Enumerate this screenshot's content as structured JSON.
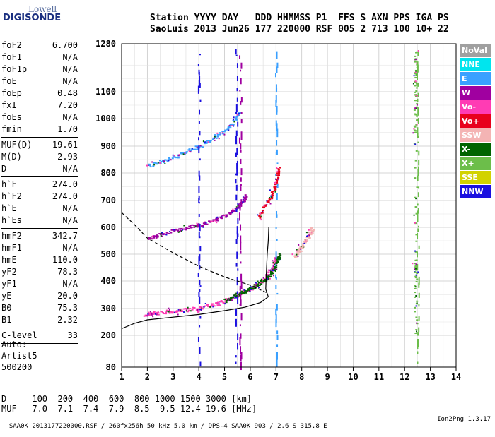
{
  "logo": {
    "line1": "Lowell",
    "line2": "DIGISONDE"
  },
  "header": {
    "row1": "Station YYYY DAY   DDD HHMMSS P1  FFS S AXN PPS IGA PS",
    "row2": "SaoLuis 2013 Jun26 177 220000 RSF 005 2 713 100 10+ 22"
  },
  "params_group1": [
    {
      "k": "foF2",
      "v": "6.700"
    },
    {
      "k": "foF1",
      "v": "N/A"
    },
    {
      "k": "foF1p",
      "v": "N/A"
    },
    {
      "k": "foE",
      "v": "N/A"
    },
    {
      "k": "foEp",
      "v": "0.48"
    },
    {
      "k": "fxI",
      "v": "7.20"
    },
    {
      "k": "foEs",
      "v": "N/A"
    },
    {
      "k": "fmin",
      "v": "1.70"
    }
  ],
  "params_group2": [
    {
      "k": "MUF(D)",
      "v": "19.61"
    },
    {
      "k": "M(D)",
      "v": "2.93"
    },
    {
      "k": "D",
      "v": "N/A"
    }
  ],
  "params_group3": [
    {
      "k": "h`F",
      "v": "274.0"
    },
    {
      "k": "h`F2",
      "v": "274.0"
    },
    {
      "k": "h`E",
      "v": "N/A"
    },
    {
      "k": "h`Es",
      "v": "N/A"
    }
  ],
  "params_group4": [
    {
      "k": "hmF2",
      "v": "342.7"
    },
    {
      "k": "hmF1",
      "v": "N/A"
    },
    {
      "k": "hmE",
      "v": "110.0"
    },
    {
      "k": "yF2",
      "v": "78.3"
    },
    {
      "k": "yF1",
      "v": "N/A"
    },
    {
      "k": "yE",
      "v": "20.0"
    },
    {
      "k": "B0",
      "v": "75.3"
    },
    {
      "k": "B1",
      "v": "2.32"
    }
  ],
  "params_group5": [
    {
      "k": "C-level",
      "v": "33"
    }
  ],
  "auto": {
    "line1": "Auto:",
    "line2": "Artist5",
    "line3": "500200"
  },
  "legend": [
    {
      "label": "NoVal",
      "color": "#a0a0a0"
    },
    {
      "label": "NNE",
      "color": "#00e5ee"
    },
    {
      "label": "E",
      "color": "#3aa0ff"
    },
    {
      "label": "W",
      "color": "#a000a0"
    },
    {
      "label": "Vo-",
      "color": "#ff3cb4"
    },
    {
      "label": "Vo+",
      "color": "#e8001c"
    },
    {
      "label": "SSW",
      "color": "#f4b4b4"
    },
    {
      "label": "X-",
      "color": "#006400"
    },
    {
      "label": "X+",
      "color": "#6cbe4a"
    },
    {
      "label": "SSE",
      "color": "#d2d200"
    },
    {
      "label": "NNW",
      "color": "#1a10e0"
    }
  ],
  "footer": {
    "d_row": "D     100  200  400  600  800 1000 1500 3000 [km]",
    "muf_row": "MUF   7.0  7.1  7.4  7.9  8.5  9.5 12.4 19.6 [MHz]"
  },
  "bottom": {
    "text": "SAA0K_2013177220000.RSF / 260fx256h 50 kHz 5.0 km / DPS-4 SAA0K 903 / 2.6 S 315.8 E",
    "version": "Ion2Png 1.3.17"
  },
  "chart_data": {
    "type": "scatter",
    "xlim": [
      1,
      14
    ],
    "ylim": [
      80,
      1280
    ],
    "x_ticks": [
      "1",
      "2",
      "3",
      "4",
      "5",
      "6",
      "7",
      "8",
      "9",
      "10",
      "11",
      "12",
      "13",
      "14"
    ],
    "y_ticks": [
      "80",
      "200",
      "300",
      "400",
      "500",
      "600",
      "700",
      "800",
      "900",
      "1000",
      "1100",
      "1280"
    ],
    "grid": true,
    "series": [
      {
        "name": "Vo-",
        "color": "#ff3cb4",
        "points": [
          [
            1.9,
            280
          ],
          [
            2.3,
            285
          ],
          [
            2.8,
            290
          ],
          [
            3.3,
            295
          ],
          [
            3.8,
            300
          ],
          [
            4.3,
            310
          ],
          [
            4.8,
            322
          ],
          [
            5.2,
            338
          ],
          [
            5.6,
            355
          ],
          [
            6.0,
            375
          ],
          [
            6.4,
            400
          ],
          [
            6.7,
            430
          ],
          [
            6.9,
            460
          ],
          [
            7.0,
            490
          ]
        ]
      },
      {
        "name": "X-",
        "color": "#006400",
        "points": [
          [
            5.0,
            330
          ],
          [
            5.4,
            348
          ],
          [
            5.8,
            365
          ],
          [
            6.2,
            385
          ],
          [
            6.6,
            410
          ],
          [
            6.9,
            440
          ],
          [
            7.0,
            480
          ],
          [
            7.1,
            500
          ]
        ]
      },
      {
        "name": "W",
        "color": "#a000a0",
        "points": [
          [
            2.0,
            560
          ],
          [
            2.5,
            575
          ],
          [
            3.0,
            590
          ],
          [
            3.5,
            600
          ],
          [
            4.0,
            610
          ],
          [
            4.5,
            625
          ],
          [
            5.0,
            645
          ],
          [
            5.4,
            670
          ],
          [
            5.7,
            700
          ],
          [
            5.8,
            720
          ]
        ]
      },
      {
        "name": "Vo+",
        "color": "#e8001c",
        "points": [
          [
            6.3,
            640
          ],
          [
            6.6,
            690
          ],
          [
            6.9,
            740
          ],
          [
            7.0,
            780
          ],
          [
            7.1,
            820
          ]
        ]
      },
      {
        "name": "E",
        "color": "#3aa0ff",
        "points": [
          [
            2.0,
            830
          ],
          [
            2.5,
            845
          ],
          [
            3.0,
            860
          ],
          [
            3.5,
            880
          ],
          [
            4.0,
            900
          ],
          [
            4.5,
            930
          ],
          [
            5.0,
            960
          ],
          [
            5.4,
            1000
          ],
          [
            5.6,
            1030
          ]
        ]
      },
      {
        "name": "SSW",
        "color": "#f4b4b4",
        "points": [
          [
            7.7,
            490
          ],
          [
            7.9,
            520
          ],
          [
            8.1,
            550
          ],
          [
            8.3,
            580
          ],
          [
            8.4,
            600
          ]
        ]
      },
      {
        "name": "X+",
        "color": "#6cbe4a",
        "points": [
          [
            12.4,
            1250
          ],
          [
            12.4,
            1150
          ],
          [
            12.4,
            1050
          ],
          [
            12.4,
            950
          ],
          [
            12.4,
            480
          ],
          [
            12.4,
            400
          ],
          [
            12.4,
            200
          ]
        ]
      }
    ],
    "curves": [
      {
        "name": "profile",
        "style": "solid",
        "points": [
          [
            1,
            225
          ],
          [
            1.5,
            245
          ],
          [
            2,
            258
          ],
          [
            3,
            268
          ],
          [
            4,
            278
          ],
          [
            5,
            292
          ],
          [
            5.8,
            305
          ],
          [
            6.4,
            322
          ],
          [
            6.7,
            342.7
          ],
          [
            6.6,
            370
          ],
          [
            6.62,
            420
          ],
          [
            6.66,
            500
          ],
          [
            6.7,
            550
          ],
          [
            6.72,
            600
          ]
        ]
      },
      {
        "name": "profile-dashed",
        "style": "dashed",
        "points": [
          [
            1,
            655
          ],
          [
            1.5,
            610
          ],
          [
            2,
            560
          ],
          [
            3,
            505
          ],
          [
            4,
            455
          ],
          [
            5,
            415
          ],
          [
            6,
            385
          ],
          [
            6.7,
            355
          ]
        ]
      }
    ]
  }
}
